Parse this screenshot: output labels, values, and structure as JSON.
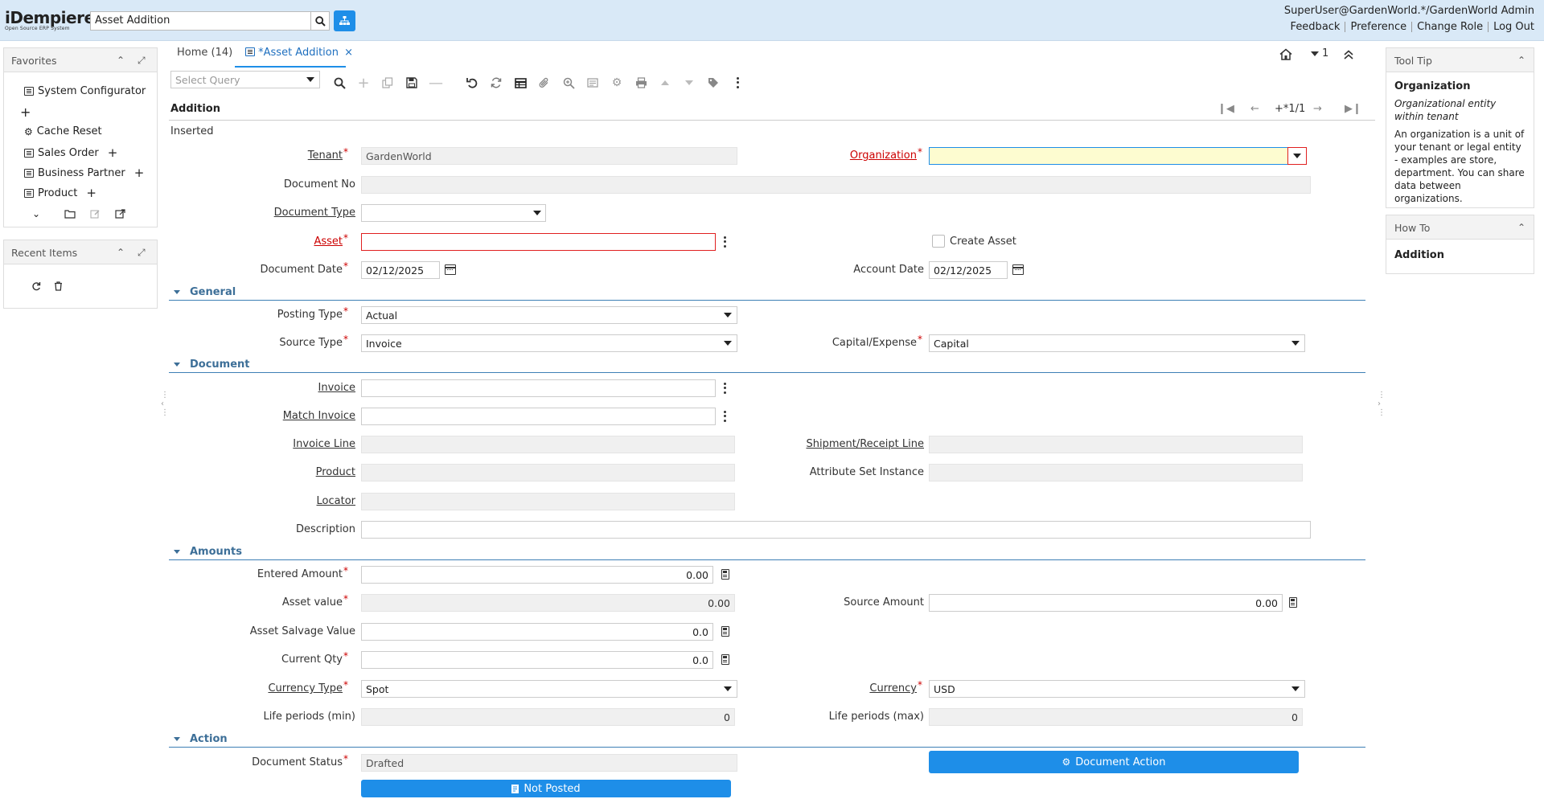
{
  "header": {
    "logo_name": "iDempiere",
    "logo_tagline": "Open Source ERP System",
    "search_value": "Asset Addition",
    "user": "SuperUser@GardenWorld.*/GardenWorld Admin",
    "links": [
      "Feedback",
      "Preference",
      "Change Role",
      "Log Out"
    ]
  },
  "favorites": {
    "title": "Favorites",
    "items": [
      {
        "label": "System Configurator",
        "icon": "window-icon"
      },
      {
        "label": "Cache Reset",
        "icon": "gear-icon"
      },
      {
        "label": "Sales Order",
        "icon": "window-icon"
      },
      {
        "label": "Business Partner",
        "icon": "window-icon"
      },
      {
        "label": "Product",
        "icon": "window-icon"
      }
    ]
  },
  "recent": {
    "title": "Recent Items"
  },
  "tabs": [
    {
      "label": "Home (14)"
    },
    {
      "label": "*Asset Addition"
    }
  ],
  "toolbar": {
    "query_placeholder": "Select Query"
  },
  "nav": {
    "home_count": "1",
    "record": "+*1/1"
  },
  "form": {
    "title": "Addition",
    "status": "Inserted",
    "tenant_label": "Tenant",
    "tenant_value": "GardenWorld",
    "org_label": "Organization",
    "org_value": "",
    "docno_label": "Document No",
    "docno_value": "",
    "doctype_label": "Document Type",
    "doctype_value": "",
    "asset_label": "Asset",
    "asset_value": "",
    "create_asset_label": "Create Asset",
    "docdate_label": "Document Date",
    "docdate_value": "02/12/2025",
    "acctdate_label": "Account Date",
    "acctdate_value": "02/12/2025"
  },
  "general": {
    "title": "General",
    "posting_label": "Posting Type",
    "posting_value": "Actual",
    "source_label": "Source Type",
    "source_value": "Invoice",
    "capexp_label": "Capital/Expense",
    "capexp_value": "Capital"
  },
  "document": {
    "title": "Document",
    "invoice_label": "Invoice",
    "match_label": "Match Invoice",
    "invline_label": "Invoice Line",
    "shipline_label": "Shipment/Receipt Line",
    "product_label": "Product",
    "attr_label": "Attribute Set Instance",
    "locator_label": "Locator",
    "desc_label": "Description"
  },
  "amounts": {
    "title": "Amounts",
    "entered_label": "Entered Amount",
    "entered_value": "0.00",
    "assetval_label": "Asset value",
    "assetval_value": "0.00",
    "sourceamt_label": "Source Amount",
    "sourceamt_value": "0.00",
    "salvage_label": "Asset Salvage Value",
    "salvage_value": "0.0",
    "qty_label": "Current Qty",
    "qty_value": "0.0",
    "currtype_label": "Currency Type",
    "currtype_value": "Spot",
    "currency_label": "Currency",
    "currency_value": "USD",
    "lifemin_label": "Life periods (min)",
    "lifemin_value": "0",
    "lifemax_label": "Life periods (max)",
    "lifemax_value": "0"
  },
  "action": {
    "title": "Action",
    "docstatus_label": "Document Status",
    "docstatus_value": "Drafted",
    "docaction_button": "Document Action",
    "posted_button": "Not Posted"
  },
  "tooltip": {
    "title": "Tool Tip",
    "field": "Organization",
    "desc": "Organizational entity within tenant",
    "help": "An organization is a unit of your tenant or legal entity - examples are store, department. You can share data between organizations."
  },
  "howto": {
    "title": "How To",
    "text": "Addition"
  },
  "colors": {
    "accent": "#1e8ee8",
    "header_bg": "#d9e9f7",
    "section": "#3d6f98",
    "required": "#cc0000"
  }
}
